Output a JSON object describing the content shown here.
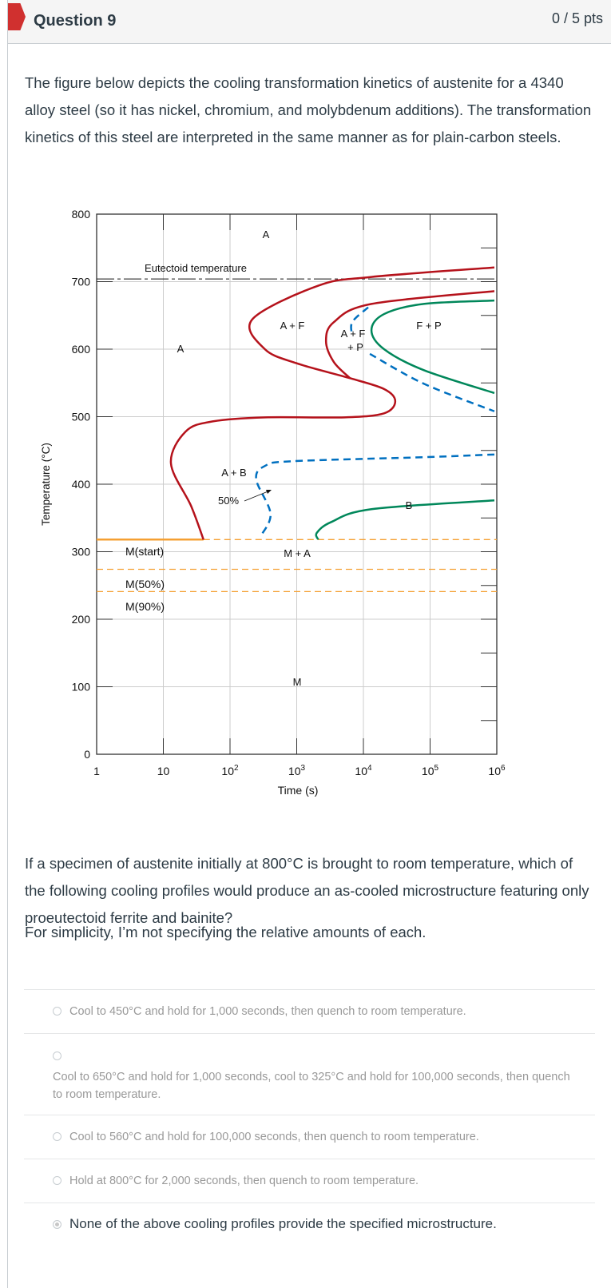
{
  "header": {
    "title": "Question 9",
    "points": "0 / 5 pts",
    "flag_color": "#d0302f"
  },
  "question": {
    "intro": "The figure below depicts the cooling transformation kinetics of austenite for a 4340 alloy steel (so it has nickel, chromium, and molybdenum additions). The transformation kinetics of this steel are interpreted in the same manner as for plain-carbon steels.",
    "prompt": "If a specimen of austenite initially at 800°C is brought to room temperature, which of the following cooling profiles would produce an as-cooled microstructure featuring only proeutectoid ferrite and bainite?",
    "note": "For simplicity, I’m not specifying the relative amounts of each."
  },
  "answers": [
    {
      "label": "Cool to 450°C and hold for 1,000 seconds, then quench to room temperature.",
      "selected": false
    },
    {
      "label": "Cool to 650°C and hold for 1,000 seconds, cool to 325°C and hold for 100,000 seconds, then quench to room temperature.",
      "selected": false
    },
    {
      "label": "Cool to 560°C and hold for 100,000 seconds, then quench to room temperature.",
      "selected": false
    },
    {
      "label": "Hold at 800°C for 2,000 seconds, then quench to room temperature.",
      "selected": false
    },
    {
      "label": "None of the above cooling profiles provide the specified microstructure.",
      "selected": true
    }
  ],
  "chart_data": {
    "type": "line",
    "xlabel": "Time (s)",
    "ylabel": "Temperature (°C)",
    "x_scale": "log",
    "xlim": [
      1,
      1000000
    ],
    "ylim": [
      0,
      800
    ],
    "x_ticks": [
      {
        "v": 1,
        "base": "1",
        "exp": ""
      },
      {
        "v": 10,
        "base": "10",
        "exp": ""
      },
      {
        "v": 100,
        "base": "10",
        "exp": "2"
      },
      {
        "v": 1000,
        "base": "10",
        "exp": "3"
      },
      {
        "v": 10000,
        "base": "10",
        "exp": "4"
      },
      {
        "v": 100000,
        "base": "10",
        "exp": "5"
      },
      {
        "v": 1000000,
        "base": "10",
        "exp": "6"
      }
    ],
    "y_ticks": [
      "0",
      "100",
      "200",
      "300",
      "400",
      "500",
      "600",
      "700",
      "800"
    ],
    "grid": true,
    "colors": {
      "start": "#b5121b",
      "ferrite_pearlite_finish": "#00875a",
      "fifty_percent": "#0070c0",
      "martensite": "#f5a033"
    },
    "horizontal_lines": [
      {
        "label": "Eutectoid temperature",
        "temp": 704,
        "style": "dash-dot"
      },
      {
        "label": "M(start)",
        "temp": 318,
        "style": "solid-then-dashed"
      },
      {
        "label": "M(50%)",
        "temp": 274,
        "style": "dashed"
      },
      {
        "label": "M(90%)",
        "temp": 241,
        "style": "dashed"
      }
    ],
    "curves": [
      {
        "id": "start",
        "color": "#b5121b",
        "dashed": false,
        "points": [
          [
            920000,
            721
          ],
          [
            13200,
            707
          ],
          [
            2100,
            694
          ],
          [
            215,
            644
          ],
          [
            333,
            600
          ],
          [
            1000,
            579
          ],
          [
            6300,
            557
          ],
          [
            20400,
            541
          ],
          [
            30000,
            523
          ],
          [
            20400,
            505
          ],
          [
            5200,
            499
          ],
          [
            335,
            499
          ],
          [
            55,
            493
          ],
          [
            21.6,
            478
          ],
          [
            13,
            431
          ],
          [
            26,
            368
          ],
          [
            40,
            318
          ]
        ]
      },
      {
        "id": "ferrite-finish",
        "color": "#b5121b",
        "dashed": false,
        "points": [
          [
            920000,
            686
          ],
          [
            13200,
            667
          ],
          [
            3600,
            640
          ],
          [
            2750,
            612
          ],
          [
            3600,
            581
          ],
          [
            6300,
            557
          ]
        ]
      },
      {
        "id": "pearlite-50-upper",
        "color": "#0070c0",
        "dashed": true,
        "points": [
          [
            11800,
            662
          ],
          [
            6800,
            640
          ],
          [
            6800,
            620
          ]
        ]
      },
      {
        "id": "pearlite-50-lower",
        "color": "#0070c0",
        "dashed": true,
        "points": [
          [
            12500,
            593
          ],
          [
            80000,
            549
          ],
          [
            920000,
            508
          ]
        ]
      },
      {
        "id": "pearlite-finish",
        "color": "#00875a",
        "dashed": false,
        "points": [
          [
            920000,
            672
          ],
          [
            80000,
            667
          ],
          [
            20400,
            652
          ],
          [
            13200,
            628
          ],
          [
            20400,
            600
          ],
          [
            80000,
            569
          ],
          [
            920000,
            535
          ]
        ]
      },
      {
        "id": "bainite-50",
        "color": "#0070c0",
        "dashed": true,
        "points": [
          [
            920000,
            444
          ],
          [
            80000,
            440
          ],
          [
            850,
            434
          ],
          [
            333,
            427
          ],
          [
            247,
            407
          ],
          [
            405,
            356
          ],
          [
            283,
            322
          ]
        ]
      },
      {
        "id": "bainite-finish",
        "color": "#00875a",
        "dashed": false,
        "points": [
          [
            920000,
            376
          ],
          [
            13200,
            363
          ],
          [
            3300,
            344
          ],
          [
            2000,
            328
          ],
          [
            2100,
            318
          ]
        ]
      }
    ],
    "region_labels": [
      "A",
      "A",
      "A + F",
      "A + F",
      "+ P",
      "F + P",
      "A + B",
      "50%",
      "B",
      "M + A",
      "M"
    ]
  }
}
